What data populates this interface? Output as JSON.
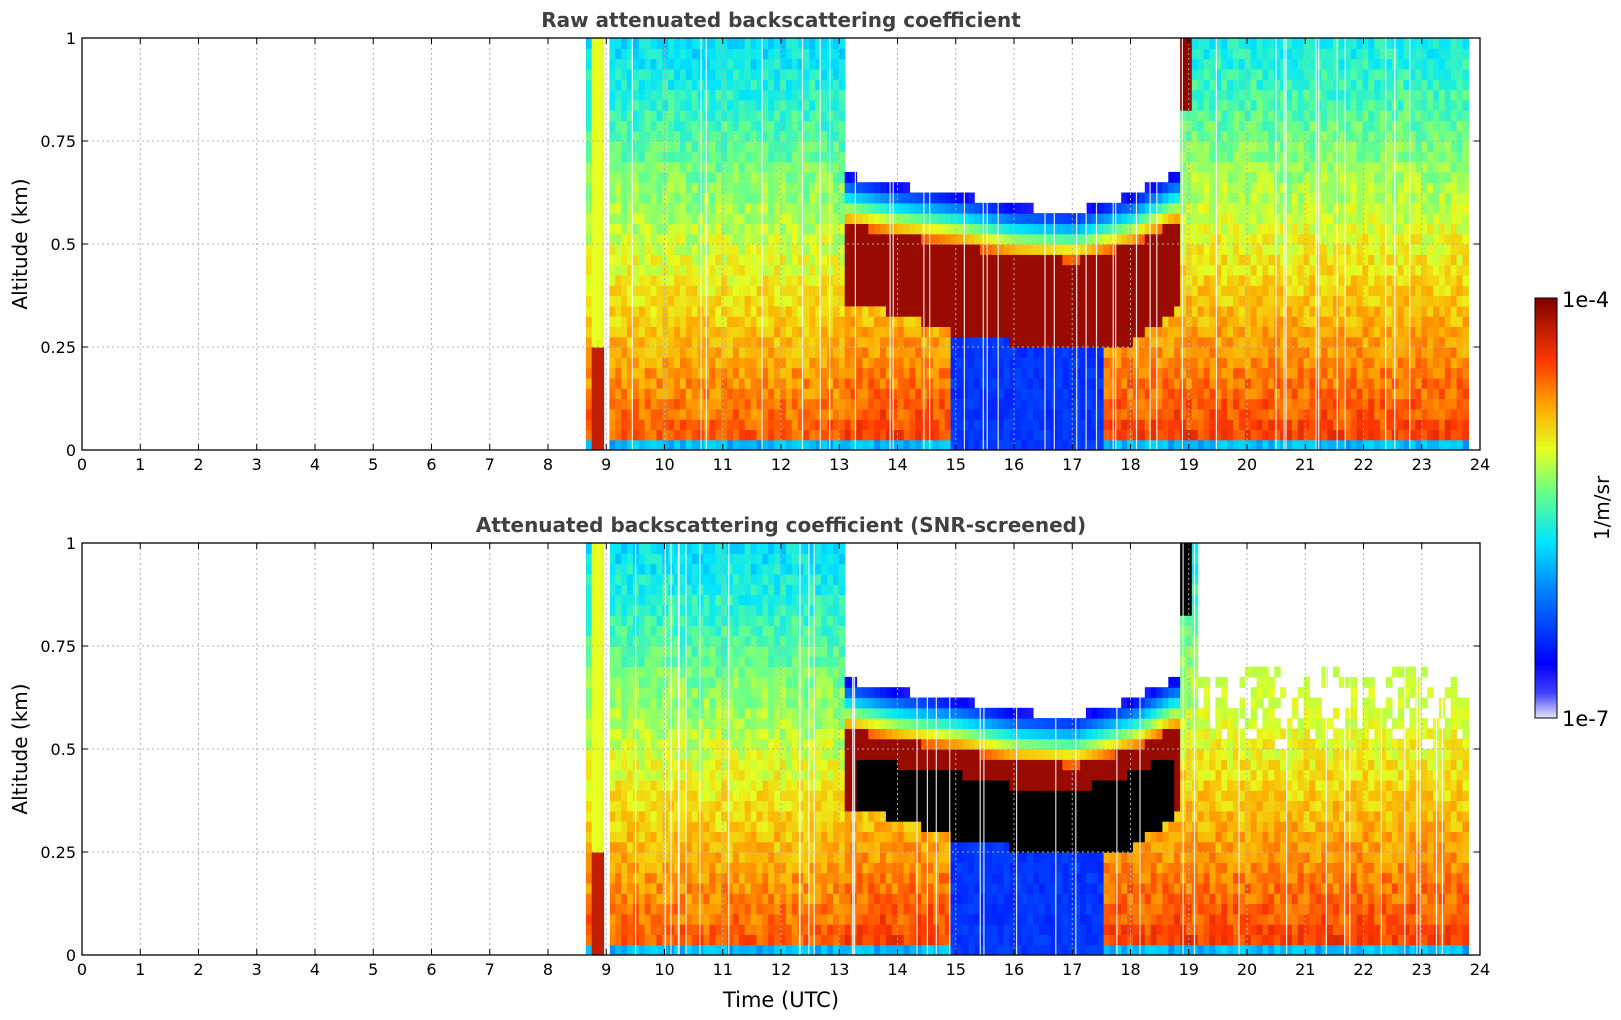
{
  "chart_data": [
    {
      "type": "heatmap",
      "title": "Raw attenuated backscattering coefficient",
      "xlabel": "",
      "ylabel": "Altitude (km)",
      "xlim": [
        0,
        24
      ],
      "ylim": [
        0,
        1
      ],
      "x_ticks": [
        "0",
        "1",
        "2",
        "3",
        "4",
        "5",
        "6",
        "7",
        "8",
        "9",
        "10",
        "11",
        "12",
        "13",
        "14",
        "15",
        "16",
        "17",
        "18",
        "19",
        "20",
        "21",
        "22",
        "23",
        "24"
      ],
      "y_ticks": [
        "0",
        "0.25",
        "0.5",
        "0.75",
        "1"
      ],
      "grid": true,
      "screened": false,
      "data_start_hour": 8.65,
      "data_end_hour": 23.8,
      "cloud_base_km": [
        [
          13.0,
          0.36
        ],
        [
          14.0,
          0.33
        ],
        [
          15.0,
          0.28
        ],
        [
          16.0,
          0.26
        ],
        [
          17.0,
          0.26
        ],
        [
          18.0,
          0.26
        ],
        [
          18.7,
          0.34
        ]
      ],
      "cloud_top_km": [
        [
          13.0,
          0.55
        ],
        [
          14.0,
          0.52
        ],
        [
          15.0,
          0.5
        ],
        [
          16.0,
          0.47
        ],
        [
          17.0,
          0.46
        ],
        [
          18.0,
          0.5
        ],
        [
          18.7,
          0.55
        ]
      ]
    },
    {
      "type": "heatmap",
      "title": "Attenuated backscattering coefficient (SNR-screened)",
      "xlabel": "Time (UTC)",
      "ylabel": "Altitude (km)",
      "xlim": [
        0,
        24
      ],
      "ylim": [
        0,
        1
      ],
      "x_ticks": [
        "0",
        "1",
        "2",
        "3",
        "4",
        "5",
        "6",
        "7",
        "8",
        "9",
        "10",
        "11",
        "12",
        "13",
        "14",
        "15",
        "16",
        "17",
        "18",
        "19",
        "20",
        "21",
        "22",
        "23",
        "24"
      ],
      "y_ticks": [
        "0",
        "0.25",
        "0.5",
        "0.75",
        "1"
      ],
      "grid": true,
      "screened": true,
      "data_start_hour": 8.65,
      "data_end_hour": 23.8
    }
  ],
  "colorbar": {
    "label": "1/m/sr",
    "max_label": "1e-4",
    "min_label": "1e-7",
    "colormap": "jet",
    "scale": "log",
    "range": [
      1e-07,
      0.0001
    ],
    "screened_fill_color": "#000000"
  }
}
